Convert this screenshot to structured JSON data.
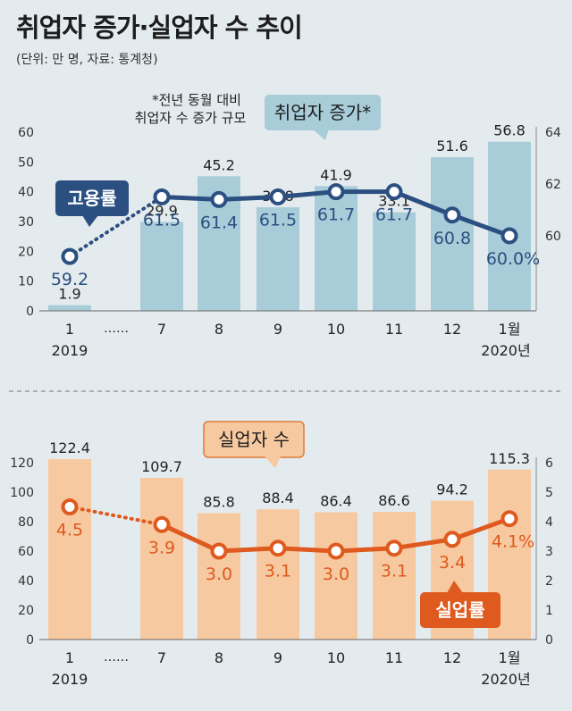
{
  "title": "취업자 증가·실업자 수 추이",
  "source": "(단위: 만 명, 자료: 통계청)",
  "chart_data": [
    {
      "type": "bar",
      "label": "취업자 증가*",
      "note_line1": "*전년 동월 대비",
      "note_line2": "취업자 수 증가 규모",
      "categories": [
        "1",
        "7",
        "8",
        "9",
        "10",
        "11",
        "12",
        "1월"
      ],
      "category_years": [
        "2019",
        "",
        "",
        "",
        "",
        "",
        "",
        "2020년"
      ],
      "gap_marker": "……",
      "values": [
        1.9,
        29.9,
        45.2,
        34.8,
        41.9,
        33.1,
        51.6,
        56.8
      ],
      "ylim": [
        0,
        60
      ],
      "yticks": [
        0,
        10,
        20,
        30,
        40,
        50,
        60
      ],
      "line": {
        "label": "고용률",
        "values": [
          59.2,
          61.5,
          61.4,
          61.5,
          61.7,
          61.7,
          60.8,
          60.0
        ],
        "value_labels": [
          "59.2",
          "61.5",
          "61.4",
          "61.5",
          "61.7",
          "61.7",
          "60.8",
          "60.0%"
        ],
        "ylim": [
          57.1,
          64
        ],
        "yticks": [
          60,
          62,
          64
        ]
      },
      "colors": {
        "bar": "#a8cdd9",
        "line": "#2b4f80",
        "text": "#2b4f80"
      }
    },
    {
      "type": "bar",
      "label": "실업자 수",
      "categories": [
        "1",
        "7",
        "8",
        "9",
        "10",
        "11",
        "12",
        "1월"
      ],
      "category_years": [
        "2019",
        "",
        "",
        "",
        "",
        "",
        "",
        "2020년"
      ],
      "gap_marker": "……",
      "values": [
        122.4,
        109.7,
        85.8,
        88.4,
        86.4,
        86.6,
        94.2,
        115.3
      ],
      "ylim": [
        0,
        120
      ],
      "yticks": [
        0,
        20,
        40,
        60,
        80,
        100,
        120
      ],
      "line": {
        "label": "실업률",
        "values": [
          4.5,
          3.9,
          3.0,
          3.1,
          3.0,
          3.1,
          3.4,
          4.1
        ],
        "value_labels": [
          "4.5",
          "3.9",
          "3.0",
          "3.1",
          "3.0",
          "3.1",
          "3.4",
          "4.1%"
        ],
        "ylim": [
          0,
          6
        ],
        "yticks": [
          0,
          1,
          2,
          3,
          4,
          5,
          6
        ]
      },
      "colors": {
        "bar": "#f7c9a0",
        "line": "#de5a1e",
        "text": "#de5a1e"
      }
    }
  ]
}
